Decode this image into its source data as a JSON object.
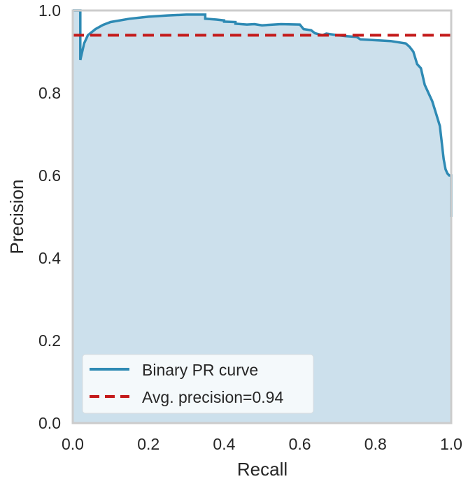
{
  "chart_data": {
    "type": "line",
    "title": "",
    "xlabel": "Recall",
    "ylabel": "Precision",
    "xlim": [
      0.0,
      1.0
    ],
    "ylim": [
      0.0,
      1.0
    ],
    "xticks": [
      "0.0",
      "0.2",
      "0.4",
      "0.6",
      "0.8",
      "1.0"
    ],
    "yticks": [
      "0.0",
      "0.2",
      "0.4",
      "0.6",
      "0.8",
      "1.0"
    ],
    "grid": false,
    "legend_position": "lower-left",
    "colors": {
      "curve": "#2e8ab4",
      "fill": "#cce0ec",
      "avg_line": "#c41a1a",
      "frame": "#cccccc"
    },
    "series": [
      {
        "name": "Binary PR curve",
        "points": [
          [
            0.0,
            1.0
          ],
          [
            0.02,
            1.0
          ],
          [
            0.02,
            0.88
          ],
          [
            0.025,
            0.9
          ],
          [
            0.03,
            0.92
          ],
          [
            0.04,
            0.94
          ],
          [
            0.06,
            0.955
          ],
          [
            0.08,
            0.965
          ],
          [
            0.1,
            0.972
          ],
          [
            0.15,
            0.98
          ],
          [
            0.2,
            0.985
          ],
          [
            0.25,
            0.988
          ],
          [
            0.3,
            0.99
          ],
          [
            0.35,
            0.99
          ],
          [
            0.35,
            0.98
          ],
          [
            0.38,
            0.978
          ],
          [
            0.4,
            0.976
          ],
          [
            0.4,
            0.973
          ],
          [
            0.43,
            0.972
          ],
          [
            0.43,
            0.968
          ],
          [
            0.46,
            0.966
          ],
          [
            0.48,
            0.967
          ],
          [
            0.5,
            0.964
          ],
          [
            0.55,
            0.967
          ],
          [
            0.6,
            0.966
          ],
          [
            0.61,
            0.955
          ],
          [
            0.63,
            0.952
          ],
          [
            0.64,
            0.945
          ],
          [
            0.66,
            0.94
          ],
          [
            0.67,
            0.944
          ],
          [
            0.7,
            0.94
          ],
          [
            0.72,
            0.938
          ],
          [
            0.75,
            0.936
          ],
          [
            0.76,
            0.93
          ],
          [
            0.8,
            0.928
          ],
          [
            0.84,
            0.926
          ],
          [
            0.88,
            0.92
          ],
          [
            0.89,
            0.912
          ],
          [
            0.9,
            0.9
          ],
          [
            0.91,
            0.87
          ],
          [
            0.92,
            0.86
          ],
          [
            0.93,
            0.82
          ],
          [
            0.94,
            0.8
          ],
          [
            0.95,
            0.78
          ],
          [
            0.96,
            0.75
          ],
          [
            0.97,
            0.72
          ],
          [
            0.975,
            0.68
          ],
          [
            0.98,
            0.64
          ],
          [
            0.985,
            0.615
          ],
          [
            0.99,
            0.605
          ],
          [
            0.995,
            0.6
          ],
          [
            1.0,
            0.6
          ],
          [
            1.0,
            0.5
          ]
        ]
      },
      {
        "name": "Avg. precision=0.94",
        "style": "dashed",
        "value": 0.94
      }
    ]
  }
}
